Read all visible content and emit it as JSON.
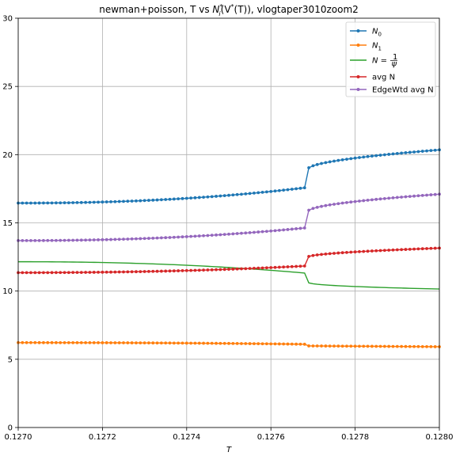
{
  "chart_data": {
    "type": "line",
    "title": "newman+poisson, T vs N_i^*(V^*(T)), vlogtaper3010zoom2",
    "title_parts": {
      "prefix": "newman+poisson, T vs ",
      "sym": "N",
      "sub": "i",
      "sup": "*",
      "mid": "(V",
      "sup2": "*",
      "suffix": "(T)), vlogtaper3010zoom2"
    },
    "xlabel": "T",
    "ylabel": "",
    "xlim": [
      0.127,
      0.128
    ],
    "ylim": [
      0,
      30
    ],
    "xticks": [
      "0.1270",
      "0.1272",
      "0.1274",
      "0.1276",
      "0.1278",
      "0.1280"
    ],
    "xtick_values": [
      0.127,
      0.1272,
      0.1274,
      0.1276,
      0.1278,
      0.128
    ],
    "yticks": [
      "0",
      "5",
      "10",
      "15",
      "20",
      "25",
      "30"
    ],
    "ytick_values": [
      0,
      5,
      10,
      15,
      20,
      25,
      30
    ],
    "grid": true,
    "legend_position": "top-right",
    "transition_x": 0.127688,
    "n_points": 101,
    "series": [
      {
        "key": "n0",
        "name": "N_0",
        "legend_main": "N",
        "legend_sub": "0",
        "color": "#1f77b4",
        "markers": true,
        "pre": [
          16.45,
          17.6
        ],
        "post": [
          18.95,
          20.35
        ],
        "post_shape": 0.55
      },
      {
        "key": "n1",
        "name": "N_1",
        "legend_main": "N",
        "legend_sub": "1",
        "color": "#ff7f0e",
        "markers": true,
        "pre": [
          6.22,
          6.1
        ],
        "post": [
          5.98,
          5.92
        ],
        "post_shape": 1.0
      },
      {
        "key": "npsi",
        "name": "N = 1/ψ",
        "legend_main": "N",
        "legend_frac": "1/ψ",
        "color": "#2ca02c",
        "markers": false,
        "pre": [
          12.15,
          11.3
        ],
        "post": [
          10.65,
          10.15
        ],
        "post_shape": 0.45
      },
      {
        "key": "avgn",
        "name": "avg N",
        "legend_main": "avg N",
        "color": "#d62728",
        "markers": true,
        "pre": [
          11.35,
          11.85
        ],
        "post": [
          12.5,
          13.15
        ],
        "post_shape": 0.55
      },
      {
        "key": "edgewtd",
        "name": "EdgeWtd avg N",
        "legend_main": "EdgeWtd avg N",
        "color": "#9467bd",
        "markers": true,
        "pre": [
          13.7,
          14.65
        ],
        "post": [
          15.85,
          17.1
        ],
        "post_shape": 0.55
      }
    ]
  }
}
